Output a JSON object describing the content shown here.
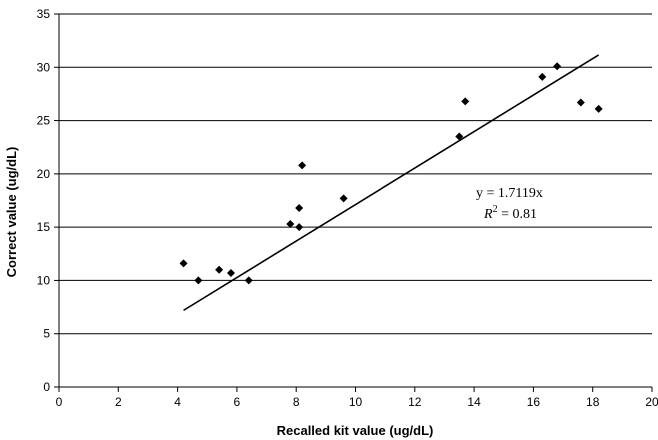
{
  "chart_data": {
    "type": "scatter",
    "xlabel": "Recalled kit value (ug/dL)",
    "ylabel": "Correct value (ug/dL)",
    "xlim": [
      0,
      20
    ],
    "ylim": [
      0,
      35
    ],
    "x_ticks": [
      0,
      2,
      4,
      6,
      8,
      10,
      12,
      14,
      16,
      18,
      20
    ],
    "y_ticks": [
      0,
      5,
      10,
      15,
      20,
      25,
      30,
      35
    ],
    "grid": "horizontal",
    "marker": "diamond",
    "points": [
      {
        "x": 4.2,
        "y": 11.6
      },
      {
        "x": 4.7,
        "y": 10.0
      },
      {
        "x": 5.4,
        "y": 11.0
      },
      {
        "x": 5.8,
        "y": 10.7
      },
      {
        "x": 6.4,
        "y": 10.0
      },
      {
        "x": 7.8,
        "y": 15.3
      },
      {
        "x": 8.1,
        "y": 16.8
      },
      {
        "x": 8.1,
        "y": 15.0
      },
      {
        "x": 8.2,
        "y": 20.8
      },
      {
        "x": 9.6,
        "y": 17.7
      },
      {
        "x": 13.5,
        "y": 23.5
      },
      {
        "x": 13.7,
        "y": 26.8
      },
      {
        "x": 16.3,
        "y": 29.1
      },
      {
        "x": 16.8,
        "y": 30.1
      },
      {
        "x": 17.6,
        "y": 26.7
      },
      {
        "x": 18.2,
        "y": 26.1
      }
    ],
    "trendline": {
      "slope": 1.7119,
      "x_range": [
        4.2,
        18.2
      ],
      "equation": "y = 1.7119x",
      "r2_label": "R",
      "r2_superscript": "2",
      "r2_value": " = 0.81"
    }
  }
}
